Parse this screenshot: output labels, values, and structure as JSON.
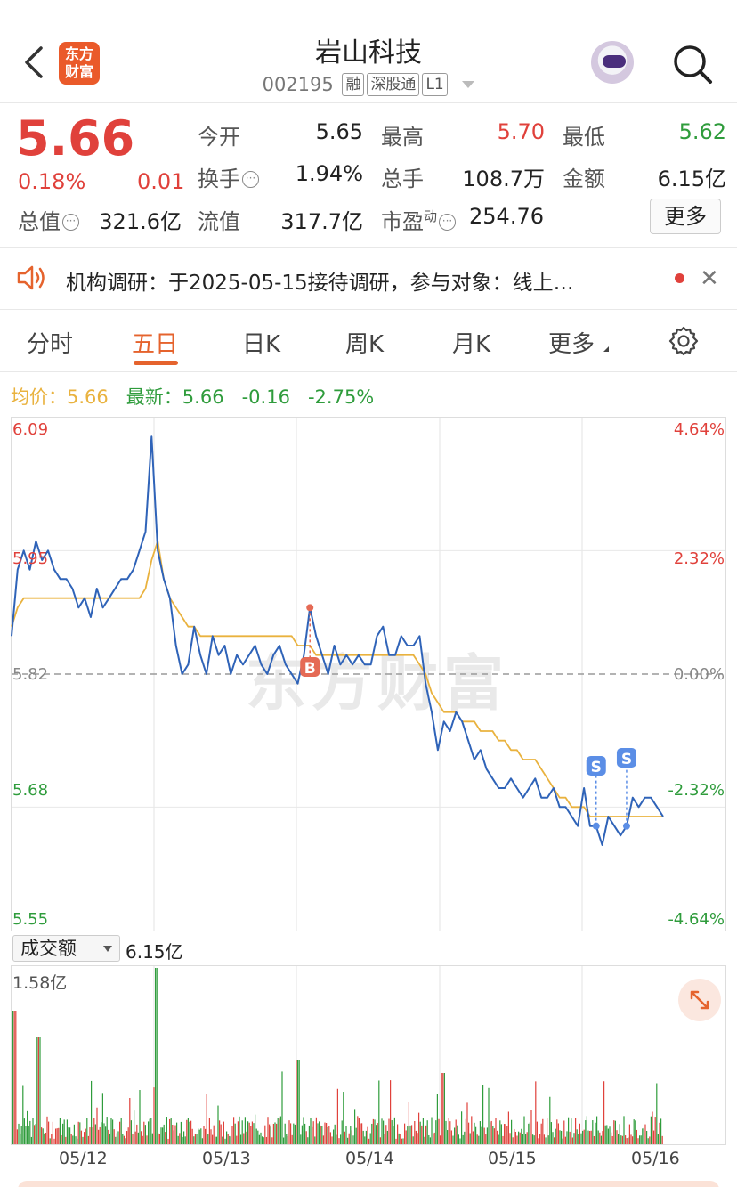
{
  "header": {
    "title": "岩山科技",
    "code": "002195",
    "tags": [
      "融",
      "深股通",
      "L1"
    ],
    "logo_line1": "东方",
    "logo_line2": "财富"
  },
  "quote": {
    "price": "5.66",
    "change_pct": "0.18%",
    "change": "0.01",
    "open_label": "今开",
    "open": "5.65",
    "high_label": "最高",
    "high": "5.70",
    "low_label": "最低",
    "low": "5.62",
    "turnover_label": "换手",
    "turnover": "1.94%",
    "volume_label": "总手",
    "volume": "108.7万",
    "amount_label": "金额",
    "amount": "6.15亿",
    "mktcap_label": "总值",
    "mktcap": "321.6亿",
    "float_label": "流值",
    "float_cap": "317.7亿",
    "pe_label": "市盈",
    "pe_sup": "动",
    "pe": "254.76",
    "more_label": "更多"
  },
  "news": {
    "text": "机构调研：于2025-05-15接待调研，参与对象：线上…"
  },
  "tabs": [
    "分时",
    "五日",
    "日K",
    "周K",
    "月K",
    "更多"
  ],
  "active_tab": "五日",
  "legend": {
    "avg_label": "均价：",
    "avg_value": "5.66",
    "latest_label": "最新：",
    "latest_value": "5.66",
    "latest_change": "-0.16",
    "latest_pct": "-2.75%"
  },
  "chart_data": {
    "type": "line",
    "y_left_ticks": [
      "6.09",
      "5.95",
      "5.82",
      "5.68",
      "5.55"
    ],
    "y_right_ticks": [
      "4.64%",
      "2.32%",
      "0.00%",
      "-2.32%",
      "-4.64%"
    ],
    "ylim": [
      5.55,
      6.09
    ],
    "prev_close": 5.82,
    "x_labels": [
      "05/12",
      "05/13",
      "05/14",
      "05/15",
      "05/16"
    ],
    "series": [
      {
        "values": [
          5.86,
          5.93,
          5.95,
          5.93,
          5.96,
          5.94,
          5.95,
          5.93,
          5.92,
          5.92,
          5.91,
          5.89,
          5.9,
          5.88,
          5.91,
          5.89,
          5.9,
          5.91,
          5.92,
          5.92,
          5.93,
          5.95,
          5.97,
          6.07,
          5.95,
          5.92,
          5.9,
          5.85,
          5.82,
          5.83,
          5.87,
          5.84,
          5.82,
          5.86,
          5.84,
          5.85,
          5.82,
          5.84,
          5.83,
          5.84,
          5.85,
          5.83,
          5.82,
          5.84,
          5.85,
          5.83,
          5.82,
          5.81,
          5.84,
          5.89,
          5.86,
          5.84,
          5.82,
          5.85,
          5.83,
          5.84,
          5.83,
          5.84,
          5.83,
          5.83,
          5.86,
          5.87,
          5.84,
          5.84,
          5.86,
          5.85,
          5.85,
          5.86,
          5.81,
          5.78,
          5.74,
          5.77,
          5.76,
          5.78,
          5.77,
          5.75,
          5.73,
          5.74,
          5.72,
          5.71,
          5.7,
          5.7,
          5.71,
          5.7,
          5.69,
          5.7,
          5.71,
          5.69,
          5.69,
          5.7,
          5.68,
          5.68,
          5.67,
          5.66,
          5.7,
          5.66,
          5.66,
          5.64,
          5.67,
          5.66,
          5.65,
          5.66,
          5.69,
          5.68,
          5.69,
          5.69,
          5.68,
          5.67
        ],
        "color": "#2f63b8"
      },
      {
        "values": [
          5.87,
          5.89,
          5.9,
          5.9,
          5.9,
          5.9,
          5.9,
          5.9,
          5.9,
          5.9,
          5.9,
          5.9,
          5.9,
          5.9,
          5.9,
          5.9,
          5.9,
          5.9,
          5.9,
          5.9,
          5.9,
          5.9,
          5.91,
          5.94,
          5.96,
          5.92,
          5.9,
          5.89,
          5.88,
          5.87,
          5.87,
          5.86,
          5.86,
          5.86,
          5.86,
          5.86,
          5.86,
          5.86,
          5.86,
          5.86,
          5.86,
          5.86,
          5.86,
          5.86,
          5.86,
          5.86,
          5.86,
          5.85,
          5.85,
          5.85,
          5.84,
          5.84,
          5.84,
          5.84,
          5.84,
          5.84,
          5.84,
          5.84,
          5.84,
          5.84,
          5.84,
          5.84,
          5.84,
          5.84,
          5.84,
          5.84,
          5.84,
          5.83,
          5.82,
          5.8,
          5.79,
          5.78,
          5.78,
          5.78,
          5.77,
          5.77,
          5.77,
          5.76,
          5.76,
          5.76,
          5.75,
          5.75,
          5.74,
          5.74,
          5.73,
          5.73,
          5.73,
          5.72,
          5.71,
          5.7,
          5.69,
          5.69,
          5.68,
          5.68,
          5.68,
          5.67,
          5.67,
          5.67,
          5.67,
          5.67,
          5.67,
          5.67,
          5.67,
          5.67,
          5.67,
          5.67,
          5.67,
          5.67
        ],
        "color": "#e9b23e"
      }
    ],
    "markers": [
      {
        "label": "B",
        "color": "#e56a55"
      },
      {
        "label": "S",
        "color": "#5b8ee6"
      },
      {
        "label": "S",
        "color": "#5b8ee6"
      }
    ]
  },
  "volume": {
    "selector_label": "成交额",
    "total": "6.15亿",
    "max_label": "1.58亿"
  },
  "watermark": "东方财富",
  "colors": {
    "up": "#e0413b",
    "down": "#2f9c3c",
    "accent": "#e5632d",
    "price_line": "#2f63b8",
    "avg_line": "#e9b23e"
  }
}
